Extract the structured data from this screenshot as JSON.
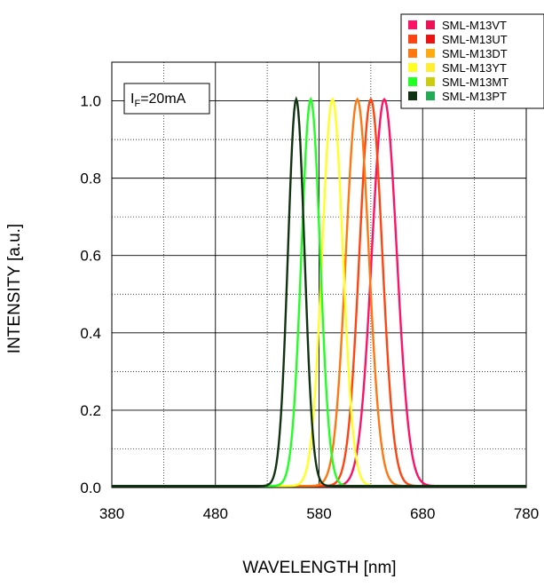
{
  "chart_data": {
    "type": "line",
    "title": "",
    "xlabel": "WAVELENGTH [nm]",
    "ylabel": "INTENSITY [a.u.]",
    "xlim": [
      380,
      780
    ],
    "ylim": [
      0.0,
      1.1
    ],
    "xticks": [
      380,
      480,
      580,
      680,
      780
    ],
    "yticks": [
      0.0,
      0.2,
      0.4,
      0.6,
      0.8,
      1.0
    ],
    "ytick_labels": [
      "0.0",
      "0.2",
      "0.4",
      "0.6",
      "0.8",
      "1.0"
    ],
    "grid": "dotted",
    "annotation": {
      "prefix": "I",
      "subscript": "F",
      "suffix": "=20mA"
    },
    "legend": {
      "placement": "top-right",
      "entries": [
        {
          "label": "SML-M13VT",
          "swatch_a": "#ff1166",
          "swatch_b": "#ee1155"
        },
        {
          "label": "SML-M13UT",
          "swatch_a": "#ff4411",
          "swatch_b": "#ee1111"
        },
        {
          "label": "SML-M13DT",
          "swatch_a": "#ff7711",
          "swatch_b": "#ffaa11"
        },
        {
          "label": "SML-M13YT",
          "swatch_a": "#ffff22",
          "swatch_b": "#ffee33"
        },
        {
          "label": "SML-M13MT",
          "swatch_a": "#22ff22",
          "swatch_b": "#cccc11"
        },
        {
          "label": "SML-M13PT",
          "swatch_a": "#113311",
          "swatch_b": "#22aa55"
        }
      ]
    },
    "series": [
      {
        "peak": 643,
        "width": 12,
        "color": "#ff1166"
      },
      {
        "peak": 630,
        "width": 11,
        "color": "#ff4411"
      },
      {
        "peak": 617,
        "width": 11,
        "color": "#ff7711"
      },
      {
        "peak": 593,
        "width": 10,
        "color": "#ffff22"
      },
      {
        "peak": 572,
        "width": 9,
        "color": "#22ff22"
      },
      {
        "peak": 558,
        "width": 8,
        "color": "#113311"
      }
    ]
  }
}
